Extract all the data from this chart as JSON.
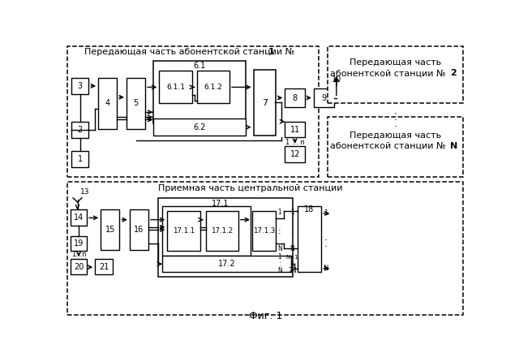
{
  "fig_width": 6.4,
  "fig_height": 4.46,
  "bg_color": "#ffffff",
  "title": "Фиг. 1",
  "top_left_title": "Передающая часть абонентской станции № ",
  "top_left_title_bold": "1",
  "top_right1_line1": "Передающая часть",
  "top_right1_line2": "абонентской станции № ",
  "top_right1_bold": "2",
  "top_right2_line1": "Передающая часть",
  "top_right2_line2": "абонентской станции № ",
  "top_right2_bold": "N",
  "bottom_title": "Приемная часть центральной станции"
}
